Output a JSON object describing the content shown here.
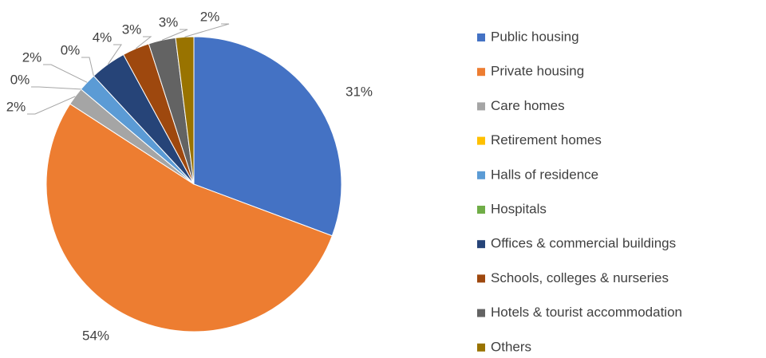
{
  "chart_data": {
    "type": "pie",
    "categories": [
      "Public housing",
      "Private housing",
      "Care homes",
      "Retirement homes",
      "Halls of residence",
      "Hospitals",
      "Offices & commercial buildings",
      "Schools, colleges & nurseries",
      "Hotels & tourist accommodation",
      "Others"
    ],
    "values": [
      31,
      54,
      2,
      0,
      2,
      0,
      4,
      3,
      3,
      2
    ],
    "value_labels": [
      "31%",
      "54%",
      "2%",
      "0%",
      "2%",
      "0%",
      "4%",
      "3%",
      "3%",
      "2%"
    ],
    "colors": [
      "#4472c4",
      "#ed7d31",
      "#a5a5a5",
      "#ffc000",
      "#5b9bd5",
      "#70ad47",
      "#264478",
      "#9e480e",
      "#636363",
      "#997300"
    ],
    "legend": "right"
  }
}
